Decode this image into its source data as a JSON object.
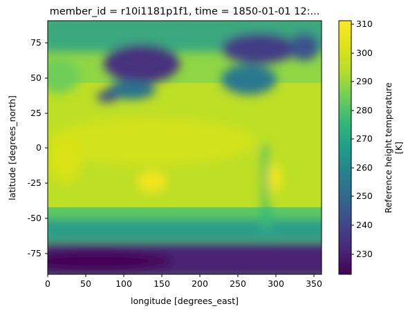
{
  "chart_data": {
    "type": "heatmap",
    "title": "member_id = r10i1181p1f1, time = 1850-01-01 12:...",
    "xlabel": "longitude [degrees_east]",
    "ylabel": "latitude [degrees_north]",
    "xlim": [
      0,
      360
    ],
    "ylim": [
      -90,
      90
    ],
    "xticks": [
      "0",
      "50",
      "100",
      "150",
      "200",
      "250",
      "300",
      "350"
    ],
    "yticks": [
      "-75",
      "-50",
      "-25",
      "0",
      "25",
      "50",
      "75"
    ],
    "colorbar": {
      "label_line1": "Reference height temperature",
      "label_line2": "[K]",
      "colormap": "viridis",
      "range": [
        222,
        312
      ],
      "ticks": [
        "230",
        "240",
        "250",
        "260",
        "270",
        "280",
        "290",
        "300",
        "310"
      ]
    },
    "field_description_points": [
      {
        "lon": 130,
        "lat": -25,
        "value": 305
      },
      {
        "lon": 300,
        "lat": -25,
        "value": 304
      },
      {
        "lon": 20,
        "lat": 0,
        "value": 300
      },
      {
        "lon": 100,
        "lat": 65,
        "value": 240
      },
      {
        "lon": 260,
        "lat": 75,
        "value": 230
      },
      {
        "lon": 45,
        "lat": -78,
        "value": 228
      },
      {
        "lon": 320,
        "lat": 75,
        "value": 245
      },
      {
        "lon": 180,
        "lat": 10,
        "value": 298
      }
    ]
  }
}
